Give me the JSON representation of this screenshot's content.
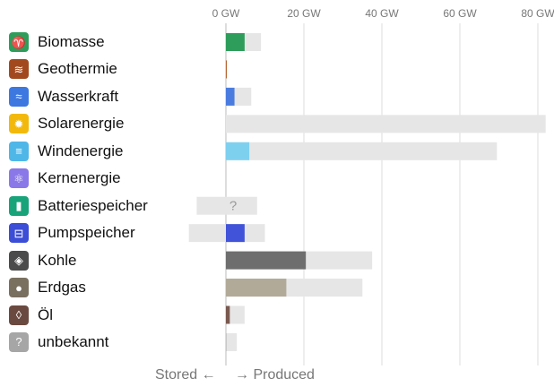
{
  "chart_data": {
    "type": "bar",
    "orientation": "horizontal",
    "x_unit": "GW",
    "xlim": [
      -10,
      82
    ],
    "x_ticks": [
      "0 GW",
      "20 GW",
      "40 GW",
      "60 GW",
      "80 GW"
    ],
    "x_tick_values": [
      0,
      20,
      40,
      60,
      80
    ],
    "grid": true,
    "categories": [
      "Biomasse",
      "Geothermie",
      "Wasserkraft",
      "Solarenergie",
      "Windenergie",
      "Kernenergie",
      "Batteriespeicher",
      "Pumpspeicher",
      "Kohle",
      "Erdgas",
      "Öl",
      "unbekannt"
    ],
    "produced": [
      4.8,
      0.2,
      2.2,
      0,
      6.0,
      0,
      0,
      4.8,
      20.5,
      15.5,
      1.0,
      0.1
    ],
    "capacity_produced": [
      9.0,
      0.2,
      6.5,
      82.0,
      69.5,
      0,
      8.0,
      10.0,
      37.5,
      35.0,
      4.8,
      2.8
    ],
    "capacity_stored": [
      0,
      0,
      0,
      0,
      0,
      0,
      7.5,
      9.5,
      0,
      0,
      0,
      0
    ],
    "unknown_marker": "?",
    "colors": [
      "#2e9d5b",
      "#b3612e",
      "#4a7ce0",
      null,
      "#7ed0ef",
      null,
      null,
      "#4154d9",
      "#6e6e6e",
      "#b2aa99",
      "#7a5a50",
      "#c8c8c8"
    ],
    "capacity_color": "#e6e6e6",
    "icons": [
      {
        "name": "biomass-icon",
        "bg": "#2e9d5b",
        "glyph": "♈"
      },
      {
        "name": "geothermal-icon",
        "bg": "#a24a1e",
        "glyph": "≋"
      },
      {
        "name": "hydro-icon",
        "bg": "#3d78e0",
        "glyph": "≈"
      },
      {
        "name": "solar-icon",
        "bg": "#f2b90c",
        "glyph": "✹"
      },
      {
        "name": "wind-icon",
        "bg": "#4fb6e8",
        "glyph": "≡"
      },
      {
        "name": "nuclear-icon",
        "bg": "#8a78e8",
        "glyph": "⚛"
      },
      {
        "name": "battery-icon",
        "bg": "#19a37a",
        "glyph": "▮"
      },
      {
        "name": "pumped-storage-icon",
        "bg": "#3c4dd6",
        "glyph": "⊟"
      },
      {
        "name": "coal-icon",
        "bg": "#4b4b4b",
        "glyph": "◈"
      },
      {
        "name": "gas-icon",
        "bg": "#7a7060",
        "glyph": "●"
      },
      {
        "name": "oil-icon",
        "bg": "#6a4a40",
        "glyph": "◊"
      },
      {
        "name": "unknown-icon",
        "bg": "#a6a6a6",
        "glyph": "?"
      }
    ],
    "footer_left": "Stored ←",
    "footer_right": "→ Produced"
  }
}
